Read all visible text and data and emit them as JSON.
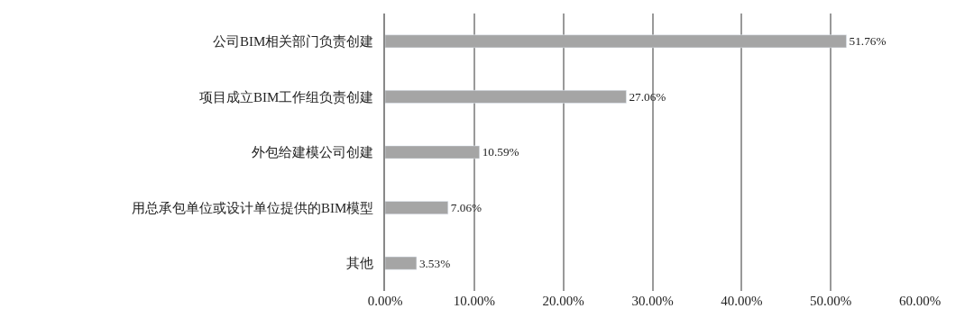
{
  "chart_data": {
    "type": "bar",
    "orientation": "horizontal",
    "categories": [
      "公司BIM相关部门负责创建",
      "项目成立BIM工作组负责创建",
      "外包给建模公司创建",
      "用总承包单位或设计单位提供的BIM模型",
      "其他"
    ],
    "values": [
      51.76,
      27.06,
      10.59,
      7.06,
      3.53
    ],
    "value_labels": [
      "51.76%",
      "27.06%",
      "10.59%",
      "7.06%",
      "3.53%"
    ],
    "color": "#a5a5a5",
    "xlim": [
      0,
      60
    ],
    "xticks": [
      {
        "value": 0,
        "label": "0.00%"
      },
      {
        "value": 10,
        "label": "10.00%"
      },
      {
        "value": 20,
        "label": "20.00%"
      },
      {
        "value": 30,
        "label": "30.00%"
      },
      {
        "value": 40,
        "label": "40.00%"
      },
      {
        "value": 50,
        "label": "50.00%"
      },
      {
        "value": 60,
        "label": "60.00%"
      }
    ],
    "grid": "x",
    "legend": false
  }
}
